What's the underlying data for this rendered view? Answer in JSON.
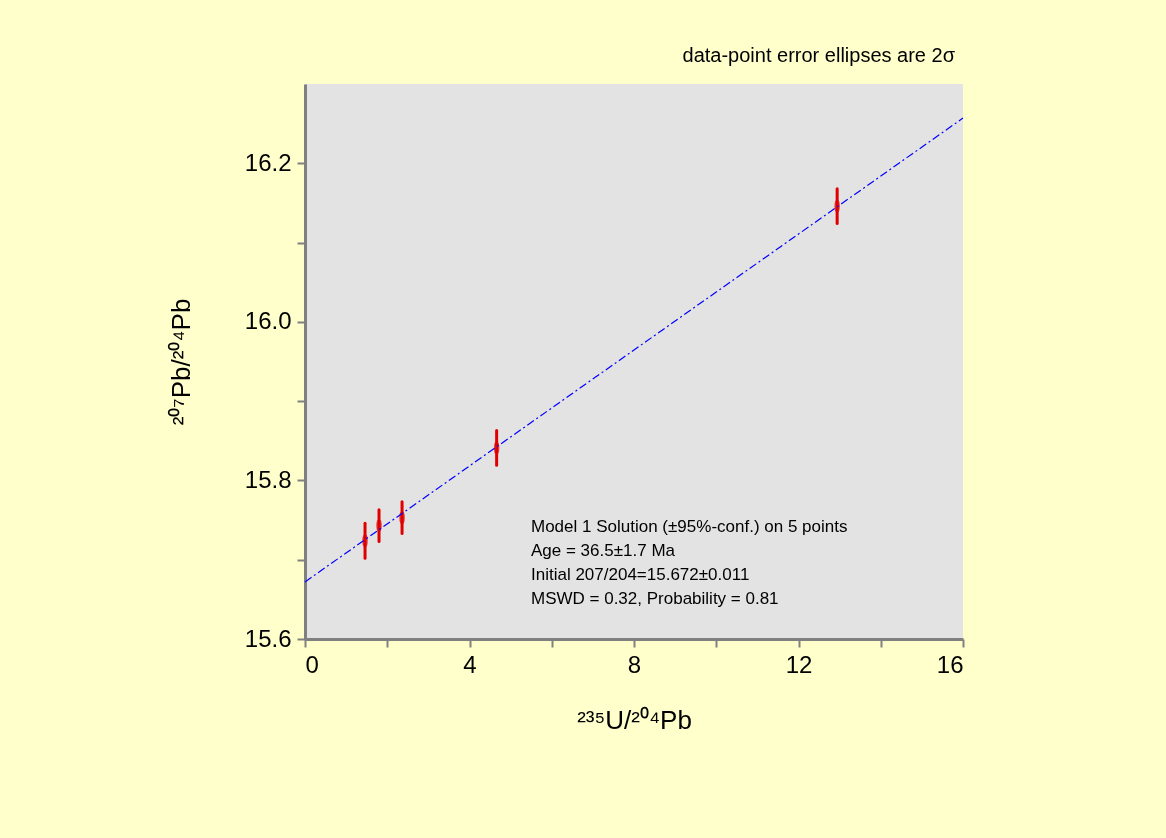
{
  "chart_data": {
    "type": "scatter",
    "xlabel": "²³⁵U/²⁰⁴Pb",
    "ylabel": "²⁰⁷Pb/²⁰⁴Pb",
    "x": [
      1.46,
      1.8,
      2.36,
      4.66,
      12.94
    ],
    "series": [
      {
        "type": "scatter",
        "color": "#e00000",
        "values": [
          15.724,
          15.743,
          15.753,
          15.841,
          16.146
        ],
        "errors": [
          0.022,
          0.02,
          0.02,
          0.022,
          0.022
        ]
      },
      {
        "type": "line",
        "color": "#0000ff",
        "line_style": "dashed",
        "x": [
          0,
          16
        ],
        "values": [
          15.672,
          16.257
        ]
      }
    ],
    "xlim": [
      0,
      16
    ],
    "ylim": [
      15.6,
      16.3
    ],
    "xticks": [
      0,
      {
        "value": 2,
        "label": null
      },
      4,
      {
        "value": 6,
        "label": null
      },
      8,
      {
        "value": 10,
        "label": null
      },
      12,
      {
        "value": 14,
        "label": null
      },
      16
    ],
    "yticks": [
      {
        "value": 15.6,
        "label": "15.6"
      },
      {
        "value": 15.7,
        "label": null
      },
      {
        "value": 15.8,
        "label": "15.8"
      },
      {
        "value": 15.9,
        "label": null
      },
      {
        "value": 16.0,
        "label": "16.0"
      },
      {
        "value": 16.1,
        "label": null
      },
      {
        "value": 16.2,
        "label": "16.2"
      }
    ],
    "grid": false,
    "annotations": [
      "data-point error ellipses are 2σ",
      "Model 1 Solution   (±95%-conf.) on 5 points",
      "Age = 36.5±1.7 Ma",
      "Initial 207/204=15.672±0.011",
      "MSWD = 0.32, Probability = 0.81"
    ]
  }
}
